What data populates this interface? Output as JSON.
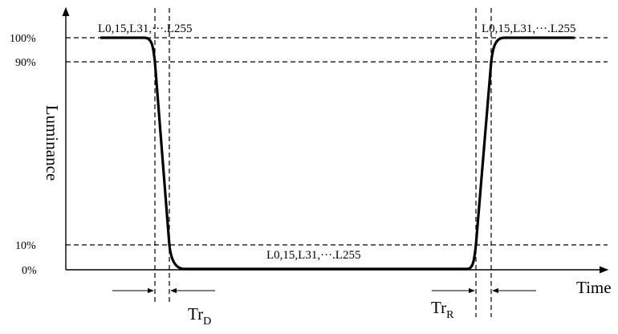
{
  "y_axis_label": "Luminance",
  "x_axis_label": "Time",
  "levels": {
    "l100": "100%",
    "l90": "90%",
    "l10": "10%",
    "l0": "0%"
  },
  "annotations": {
    "top_left": "L0,15,L31,···.L255",
    "top_right": "L0,15,L31,···.L255",
    "bottom_mid": "L0,15,L31,···.L255"
  },
  "intervals": {
    "fall": {
      "main": "Tr",
      "sub": "D"
    },
    "rise": {
      "main": "Tr",
      "sub": "R"
    }
  }
}
